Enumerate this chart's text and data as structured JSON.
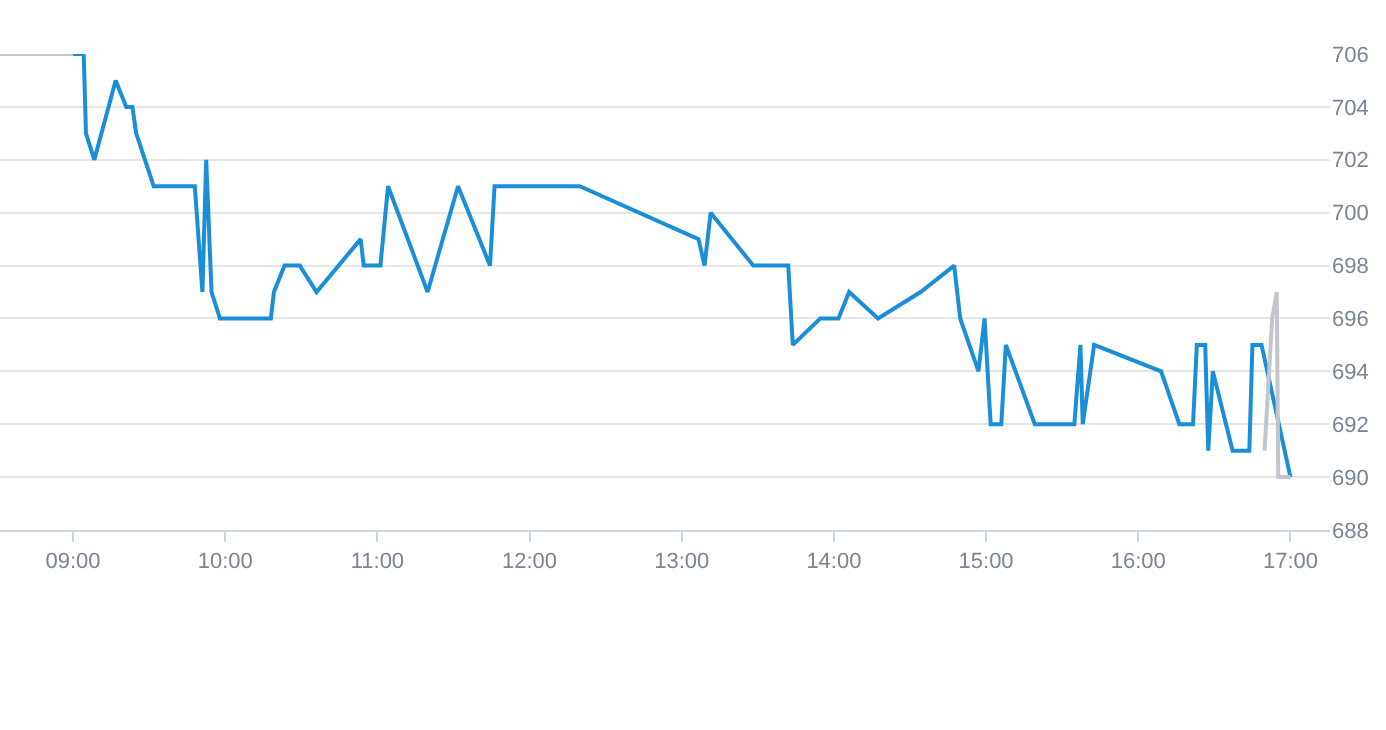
{
  "chart_data": {
    "type": "line",
    "x": [
      9.0,
      9.07,
      9.085,
      9.14,
      9.28,
      9.35,
      9.39,
      9.415,
      9.53,
      9.8,
      9.85,
      9.875,
      9.91,
      9.965,
      10.3,
      10.32,
      10.39,
      10.49,
      10.6,
      10.89,
      10.91,
      11.02,
      11.07,
      11.33,
      11.53,
      11.74,
      11.77,
      12.33,
      13.11,
      13.15,
      13.19,
      13.47,
      13.7,
      13.73,
      13.91,
      14.03,
      14.1,
      14.29,
      14.57,
      14.79,
      14.83,
      14.95,
      14.99,
      15.03,
      15.1,
      15.13,
      15.32,
      15.58,
      15.62,
      15.635,
      15.71,
      16.15,
      16.27,
      16.36,
      16.385,
      16.44,
      16.46,
      16.49,
      16.62,
      16.73,
      16.75,
      16.81,
      17.0
    ],
    "series": [
      {
        "color": "#1a8fd8",
        "values": [
          706,
          706,
          703,
          702,
          705,
          704,
          704,
          703,
          701,
          701,
          697,
          702,
          697,
          696,
          696,
          697,
          698,
          698,
          697,
          699,
          698,
          698,
          701,
          697,
          701,
          698,
          701,
          701,
          699,
          698,
          700,
          698,
          698,
          695,
          696,
          696,
          697,
          696,
          697,
          698,
          696,
          694,
          696,
          692,
          692,
          695,
          692,
          692,
          695,
          692,
          695,
          694,
          692,
          692,
          695,
          695,
          691,
          694,
          691,
          691,
          695,
          695,
          690
        ]
      },
      {
        "color": "#c2c6cc",
        "x": [
          8.52,
          9.0
        ],
        "values": [
          706,
          706
        ]
      },
      {
        "color": "#c2c6cc",
        "x": [
          16.83,
          16.88,
          16.91,
          16.92,
          17.0
        ],
        "values": [
          691,
          696,
          697,
          690,
          690
        ]
      }
    ],
    "xlim": [
      8.52,
      17.26
    ],
    "xticks": [
      {
        "value": 9,
        "label": "09:00"
      },
      {
        "value": 10,
        "label": "10:00"
      },
      {
        "value": 11,
        "label": "11:00"
      },
      {
        "value": 12,
        "label": "12:00"
      },
      {
        "value": 13,
        "label": "13:00"
      },
      {
        "value": 14,
        "label": "14:00"
      },
      {
        "value": 15,
        "label": "15:00"
      },
      {
        "value": 16,
        "label": "16:00"
      },
      {
        "value": 17,
        "label": "17:00"
      }
    ],
    "ylim": [
      688,
      706
    ],
    "yticks": [
      688,
      690,
      692,
      694,
      696,
      698,
      700,
      702,
      704,
      706
    ],
    "grid": "y"
  }
}
